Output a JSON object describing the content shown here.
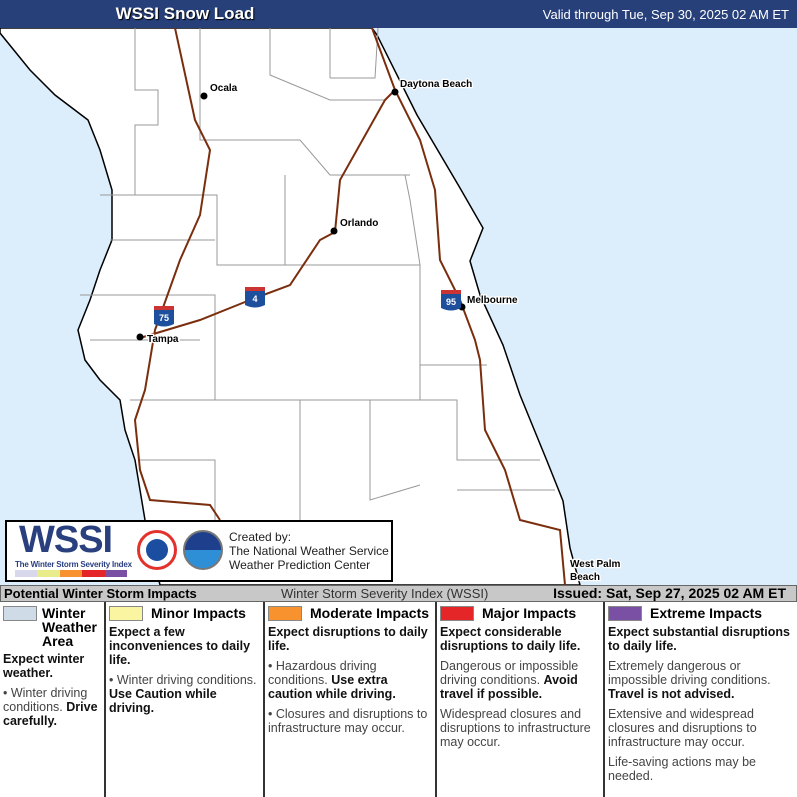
{
  "header": {
    "title": "WSSI Snow Load",
    "valid": "Valid through Tue, Sep 30, 2025 02 AM ET"
  },
  "map": {
    "cities": [
      "Ocala",
      "Daytona Beach",
      "Orlando",
      "Melbourne",
      "Tampa",
      "West Palm Beach"
    ],
    "highways": [
      "75",
      "4",
      "95"
    ],
    "colors": {
      "water": "#dcedfb",
      "land": "#ffffff",
      "highway": "#7a2e0e",
      "county": "#888888"
    }
  },
  "logo": {
    "wssi": "WSSI",
    "wssi_sub": "The Winter Storm Severity Index",
    "created": [
      "Created by:",
      "The National Weather Service",
      "Weather Prediction Center"
    ],
    "nws_text": "NATIONAL WEATHER SERVICE",
    "noaa_text": "NOAA"
  },
  "legend_bar": {
    "left": "Potential Winter Storm Impacts",
    "middle": "Winter Storm Severity Index (WSSI)",
    "issued": "Issued: Sat, Sep 27, 2025 02 AM ET"
  },
  "legend": [
    {
      "title": "Winter Weather Area",
      "color": "#cfdbe6",
      "expect": "Expect winter weather.",
      "items": [
        {
          "text": "Winter driving conditions.",
          "bold": "Drive carefully."
        }
      ]
    },
    {
      "title": "Minor Impacts",
      "color": "#faf5a0",
      "expect": "Expect a few inconveniences to daily life.",
      "items": [
        {
          "text": "Winter driving conditions.",
          "bold": "Use Caution while driving."
        }
      ]
    },
    {
      "title": "Moderate Impacts",
      "color": "#f7922e",
      "expect": "Expect disruptions to daily life.",
      "items": [
        {
          "text": "Hazardous driving conditions.",
          "bold": "Use extra caution while driving."
        },
        {
          "text": "Closures and disruptions to infrastructure may occur.",
          "bold": ""
        }
      ]
    },
    {
      "title": "Major Impacts",
      "color": "#e52628",
      "expect": "Expect considerable disruptions to daily life.",
      "items": [
        {
          "text": "Dangerous or impossible driving conditions.",
          "bold": "Avoid travel if possible."
        },
        {
          "text": "Widespread closures and disruptions to infrastructure may occur.",
          "bold": ""
        }
      ]
    },
    {
      "title": "Extreme Impacts",
      "color": "#7a50a4",
      "expect": "Expect substantial disruptions to daily life.",
      "items": [
        {
          "text": "Extremely dangerous or impossible driving conditions.",
          "bold": "Travel is not advised."
        },
        {
          "text": "Extensive and widespread closures and disruptions to infrastructure may occur.",
          "bold": ""
        },
        {
          "text": "Life-saving actions may be needed.",
          "bold": ""
        }
      ]
    }
  ]
}
